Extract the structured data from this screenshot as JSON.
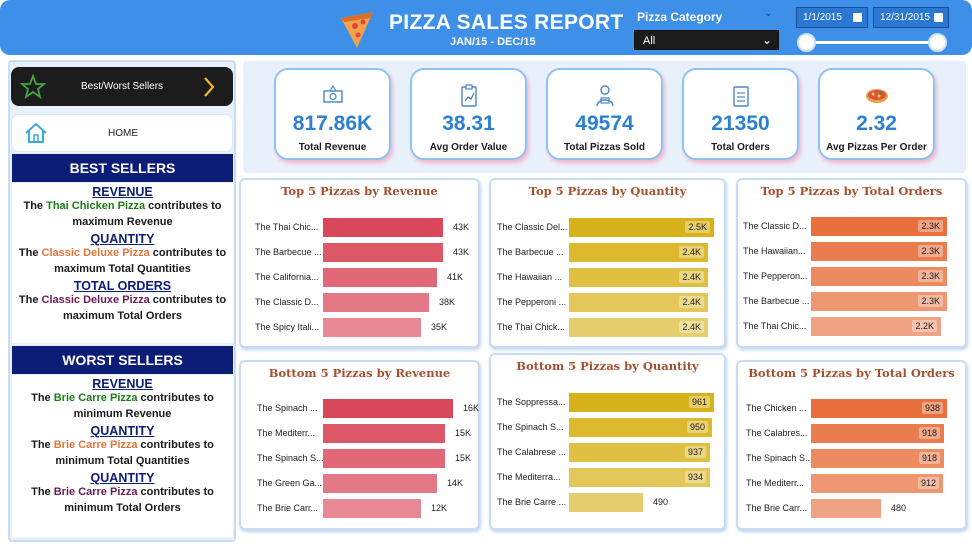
{
  "header": {
    "title": "PIZZA SALES REPORT",
    "subtitle": "JAN/15 - DEC/15",
    "category_label": "Pizza Category",
    "category_value": "All",
    "date_start": "1/1/2015",
    "date_end": "12/31/2015"
  },
  "nav": {
    "best_worst": "Best/Worst Sellers",
    "home": "HOME"
  },
  "best": {
    "title": "BEST SELLERS",
    "blocks": [
      {
        "heading": "REVENUE",
        "pre": "The ",
        "pizza": "Thai Chicken Pizza",
        "post": " contributes to",
        "line2": "maximum Revenue"
      },
      {
        "heading": "QUANTITY",
        "pre": "The ",
        "pizza": "Classic Deluxe Pizza",
        "post": " contributes to",
        "line2": "maximum Total Quantities"
      },
      {
        "heading": "TOTAL ORDERS",
        "pre": "The ",
        "pizza": "Classic Deluxe Pizza",
        "post": " contributes to",
        "line2": "maximum Total Orders"
      }
    ]
  },
  "worst": {
    "title": "WORST SELLERS",
    "blocks": [
      {
        "heading": "REVENUE",
        "pre": "The ",
        "pizza": "Brie Carre Pizza",
        "post": " contributes to",
        "line2": "minimum Revenue"
      },
      {
        "heading": "QUANTITY",
        "pre": "The ",
        "pizza": "Brie Carre Pizza",
        "post": " contributes to",
        "line2": "minimum Total Quantities"
      },
      {
        "heading": "QUANTITY",
        "pre": "The ",
        "pizza": "Brie Carre Pizza",
        "post": " contributes to",
        "line2": "minimum Total Orders"
      }
    ]
  },
  "kpis": [
    {
      "value": "817.86K",
      "label": "Total Revenue",
      "icon": "money-icon"
    },
    {
      "value": "38.31",
      "label": "Avg Order Value",
      "icon": "clipboard-chart-icon"
    },
    {
      "value": "49574",
      "label": "Total Pizzas Sold",
      "icon": "delivery-person-icon"
    },
    {
      "value": "21350",
      "label": "Total Orders",
      "icon": "checklist-icon"
    },
    {
      "value": "2.32",
      "label": "Avg Pizzas Per Order",
      "icon": "pizza-icon"
    }
  ],
  "chart_data": [
    {
      "type": "bar",
      "title": "Top 5 Pizzas by Revenue",
      "categories": [
        "The Thai Chic...",
        "The Barbecue ...",
        "The California...",
        "The Classic D...",
        "The Spicy Itali..."
      ],
      "values": [
        43,
        43,
        41,
        38,
        35
      ],
      "labels": [
        "43K",
        "43K",
        "41K",
        "38K",
        "35K"
      ],
      "max": 43,
      "color": "#d9475a",
      "value_inside": false
    },
    {
      "type": "bar",
      "title": "Top 5 Pizzas by Quantity",
      "categories": [
        "The Classic Del...",
        "The Barbecue ...",
        "The Hawaiian ...",
        "The Pepperoni ...",
        "The Thai Chick..."
      ],
      "values": [
        2.5,
        2.4,
        2.4,
        2.4,
        2.4
      ],
      "labels": [
        "2.5K",
        "2.4K",
        "2.4K",
        "2.4K",
        "2.4K"
      ],
      "max": 2.5,
      "color": "#d8b21a",
      "value_inside": true
    },
    {
      "type": "bar",
      "title": "Top 5 Pizzas by Total Orders",
      "categories": [
        "The Classic D...",
        "The Hawaiian...",
        "The Pepperon...",
        "The Barbecue ...",
        "The Thai Chic..."
      ],
      "values": [
        2.3,
        2.3,
        2.3,
        2.3,
        2.2
      ],
      "labels": [
        "2.3K",
        "2.3K",
        "2.3K",
        "2.3K",
        "2.2K"
      ],
      "max": 2.3,
      "color": "#e8703f",
      "value_inside": true
    },
    {
      "type": "bar",
      "title": "Bottom 5 Pizzas by Revenue",
      "categories": [
        "The Spinach ...",
        "The Mediterr...",
        "The Spinach S...",
        "The Green Ga...",
        "The Brie Carr..."
      ],
      "values": [
        16,
        15,
        15,
        14,
        12
      ],
      "labels": [
        "16K",
        "15K",
        "15K",
        "14K",
        "12K"
      ],
      "max": 16,
      "color": "#d9475a",
      "value_inside": false
    },
    {
      "type": "bar",
      "title": "Bottom 5 Pizzas by Quantity",
      "categories": [
        "The Soppressa...",
        "The Spinach S...",
        "The Calabrese ...",
        "The Mediterra...",
        "The Brie Carre ..."
      ],
      "values": [
        961,
        950,
        937,
        934,
        490
      ],
      "labels": [
        "961",
        "950",
        "937",
        "934",
        "490"
      ],
      "max": 961,
      "color": "#d8b21a",
      "value_inside": true
    },
    {
      "type": "bar",
      "title": "Bottom 5 Pizzas by Total Orders",
      "categories": [
        "The Chicken ...",
        "The Calabres...",
        "The Spinach S...",
        "The Mediterr...",
        "The Brie Carr..."
      ],
      "values": [
        938,
        918,
        918,
        912,
        480
      ],
      "labels": [
        "938",
        "918",
        "918",
        "912",
        "480"
      ],
      "max": 938,
      "color": "#e8703f",
      "value_inside": true
    }
  ]
}
